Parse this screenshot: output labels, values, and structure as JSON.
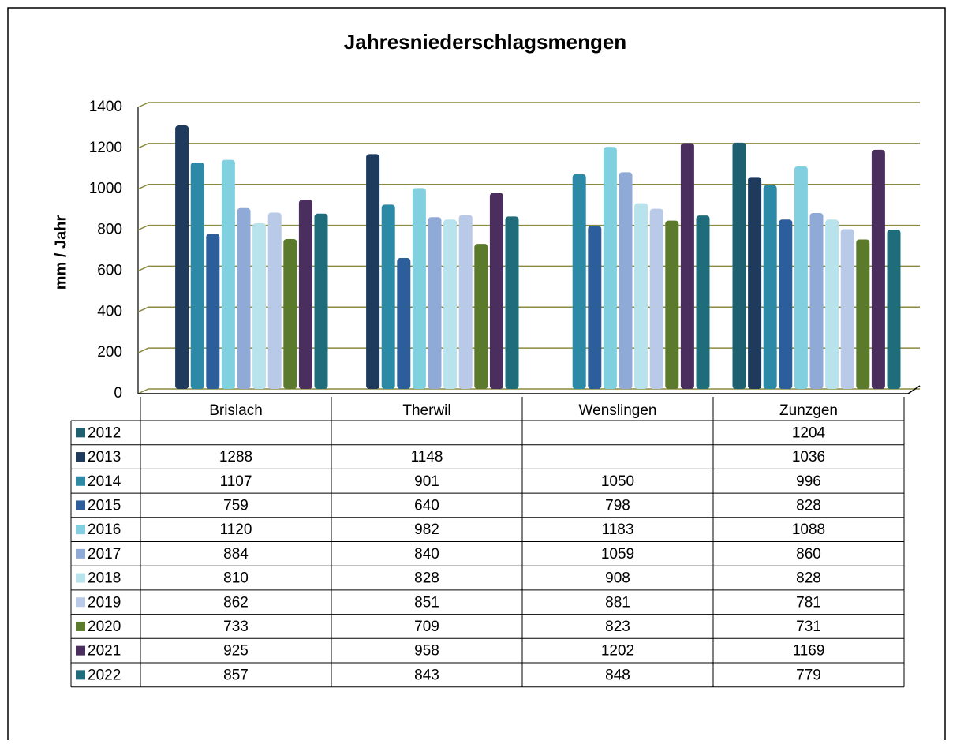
{
  "chart_data": {
    "type": "bar",
    "title": "Jahresniederschlagsmengen",
    "y_label": "mm / Jahr",
    "categories": [
      "Brislach",
      "Therwil",
      "Wenslingen",
      "Zunzgen"
    ],
    "series": [
      {
        "name": "2012",
        "color": "#1e6070",
        "values": [
          null,
          null,
          null,
          1204
        ]
      },
      {
        "name": "2013",
        "color": "#1e3a5c",
        "values": [
          1288,
          1148,
          null,
          1036
        ]
      },
      {
        "name": "2014",
        "color": "#2c8aa6",
        "values": [
          1107,
          901,
          1050,
          996
        ]
      },
      {
        "name": "2015",
        "color": "#2d5e9c",
        "values": [
          759,
          640,
          798,
          828
        ]
      },
      {
        "name": "2016",
        "color": "#80d0e0",
        "values": [
          1120,
          982,
          1183,
          1088
        ]
      },
      {
        "name": "2017",
        "color": "#90aad8",
        "values": [
          884,
          840,
          1059,
          860
        ]
      },
      {
        "name": "2018",
        "color": "#b8e2ec",
        "values": [
          810,
          828,
          908,
          828
        ]
      },
      {
        "name": "2019",
        "color": "#b9c9e8",
        "values": [
          862,
          851,
          881,
          781
        ]
      },
      {
        "name": "2020",
        "color": "#5b7a2b",
        "values": [
          733,
          709,
          823,
          731
        ]
      },
      {
        "name": "2021",
        "color": "#4a2f5e",
        "values": [
          925,
          958,
          1202,
          1169
        ]
      },
      {
        "name": "2022",
        "color": "#1f6d7a",
        "values": [
          857,
          843,
          848,
          779
        ]
      }
    ],
    "ylim": [
      0,
      1400
    ],
    "yticks": [
      0,
      200,
      400,
      600,
      800,
      1000,
      1200,
      1400
    ],
    "grid": true
  }
}
